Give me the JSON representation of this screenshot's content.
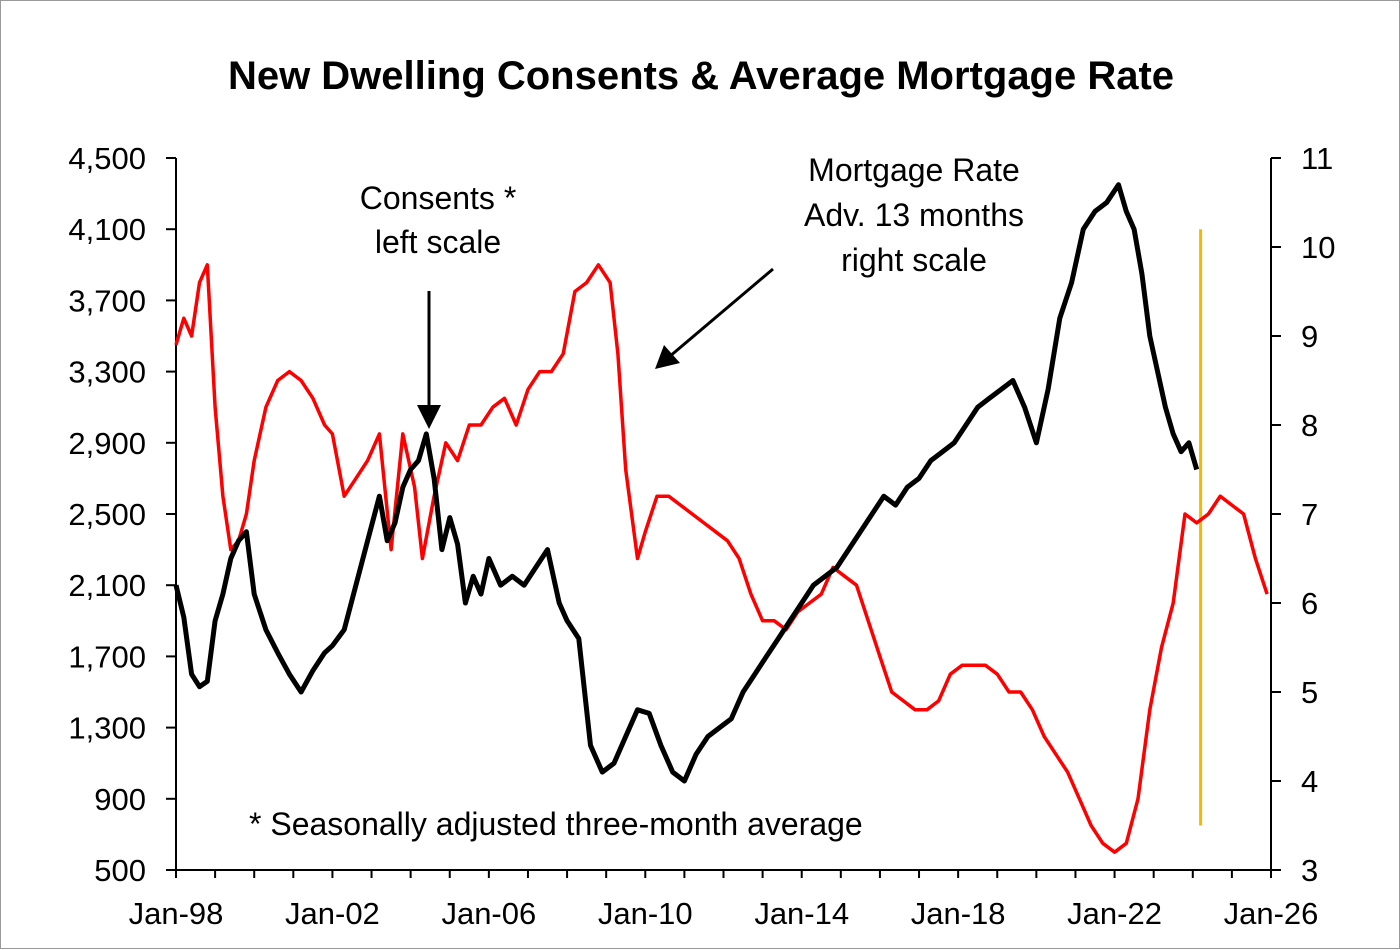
{
  "chart_data": {
    "type": "line",
    "title": "New Dwelling Consents & Average Mortgage Rate",
    "x_ticks": [
      "Jan-98",
      "Jan-02",
      "Jan-06",
      "Jan-10",
      "Jan-14",
      "Jan-18",
      "Jan-22",
      "Jan-26"
    ],
    "xlim": [
      1998.0,
      2026.0
    ],
    "y_left": {
      "ticks": [
        "500",
        "900",
        "1,300",
        "1,700",
        "2,100",
        "2,500",
        "2,900",
        "3,300",
        "3,700",
        "4,100",
        "4,500"
      ],
      "ylim": [
        500,
        4500
      ]
    },
    "y_right": {
      "ticks": [
        "3",
        "4",
        "5",
        "6",
        "7",
        "8",
        "9",
        "10",
        "11"
      ],
      "ylim": [
        3,
        11
      ]
    },
    "annotations": {
      "consents": [
        "Consents *",
        "left scale"
      ],
      "mortgage": [
        "Mortgage Rate",
        "Adv. 13 months",
        "right scale"
      ],
      "footnote": "* Seasonally adjusted three-month average"
    },
    "colors": {
      "consents": "#000000",
      "mortgage": "#ff0000",
      "marker": "#f5b800"
    },
    "marker_line_x": 2024.2,
    "series": [
      {
        "axis": "left",
        "x": [
          1998.0,
          1998.2,
          1998.4,
          1998.6,
          1998.8,
          1999.0,
          1999.2,
          1999.4,
          1999.6,
          1999.8,
          2000.0,
          2000.3,
          2000.6,
          2000.9,
          2001.2,
          2001.5,
          2001.8,
          2002.0,
          2002.3,
          2002.6,
          2002.9,
          2003.2,
          2003.4,
          2003.6,
          2003.8,
          2004.0,
          2004.2,
          2004.4,
          2004.6,
          2004.8,
          2005.0,
          2005.2,
          2005.4,
          2005.6,
          2005.8,
          2006.0,
          2006.3,
          2006.6,
          2006.9,
          2007.2,
          2007.5,
          2007.8,
          2008.0,
          2008.3,
          2008.6,
          2008.9,
          2009.2,
          2009.5,
          2009.8,
          2010.1,
          2010.4,
          2010.7,
          2011.0,
          2011.3,
          2011.6,
          2011.9,
          2012.2,
          2012.5,
          2012.8,
          2013.1,
          2013.4,
          2013.7,
          2014.0,
          2014.3,
          2014.6,
          2014.9,
          2015.2,
          2015.5,
          2015.8,
          2016.1,
          2016.4,
          2016.7,
          2017.0,
          2017.3,
          2017.6,
          2017.9,
          2018.2,
          2018.5,
          2018.8,
          2019.1,
          2019.4,
          2019.7,
          2020.0,
          2020.3,
          2020.6,
          2020.9,
          2021.2,
          2021.5,
          2021.8,
          2022.1,
          2022.3,
          2022.5,
          2022.7,
          2022.9,
          2023.1,
          2023.3,
          2023.5,
          2023.7,
          2023.9,
          2024.1
        ],
        "values": [
          2100,
          1920,
          1600,
          1530,
          1560,
          1900,
          2050,
          2250,
          2350,
          2400,
          2050,
          1850,
          1720,
          1600,
          1500,
          1620,
          1720,
          1760,
          1850,
          2100,
          2350,
          2600,
          2350,
          2450,
          2650,
          2750,
          2800,
          2950,
          2700,
          2300,
          2480,
          2330,
          2000,
          2150,
          2050,
          2250,
          2100,
          2150,
          2100,
          2200,
          2300,
          2000,
          1900,
          1800,
          1200,
          1050,
          1100,
          1250,
          1400,
          1380,
          1200,
          1050,
          1000,
          1150,
          1250,
          1300,
          1350,
          1500,
          1600,
          1700,
          1800,
          1900,
          2000,
          2100,
          2150,
          2200,
          2300,
          2400,
          2500,
          2600,
          2550,
          2650,
          2700,
          2800,
          2850,
          2900,
          3000,
          3100,
          3150,
          3200,
          3250,
          3100,
          2900,
          3200,
          3600,
          3800,
          4100,
          4200,
          4250,
          4350,
          4200,
          4100,
          3850,
          3500,
          3300,
          3100,
          2950,
          2850,
          2900,
          2750
        ]
      },
      {
        "axis": "right",
        "x": [
          1998.0,
          1998.2,
          1998.4,
          1998.6,
          1998.8,
          1999.0,
          1999.2,
          1999.4,
          1999.6,
          1999.8,
          2000.0,
          2000.3,
          2000.6,
          2000.9,
          2001.2,
          2001.5,
          2001.8,
          2002.0,
          2002.3,
          2002.6,
          2002.9,
          2003.2,
          2003.5,
          2003.8,
          2004.1,
          2004.3,
          2004.6,
          2004.9,
          2005.2,
          2005.5,
          2005.8,
          2006.1,
          2006.4,
          2006.7,
          2007.0,
          2007.3,
          2007.6,
          2007.9,
          2008.2,
          2008.5,
          2008.8,
          2009.1,
          2009.3,
          2009.5,
          2009.8,
          2010.0,
          2010.3,
          2010.6,
          2010.9,
          2011.2,
          2011.5,
          2011.8,
          2012.1,
          2012.4,
          2012.7,
          2013.0,
          2013.3,
          2013.6,
          2013.9,
          2014.2,
          2014.5,
          2014.8,
          2015.1,
          2015.4,
          2015.7,
          2016.0,
          2016.3,
          2016.6,
          2016.9,
          2017.2,
          2017.5,
          2017.8,
          2018.1,
          2018.4,
          2018.7,
          2019.0,
          2019.3,
          2019.6,
          2019.9,
          2020.2,
          2020.5,
          2020.8,
          2021.1,
          2021.4,
          2021.7,
          2022.0,
          2022.3,
          2022.6,
          2022.9,
          2023.2,
          2023.5,
          2023.8,
          2024.1,
          2024.4,
          2024.7,
          2025.0,
          2025.3,
          2025.6,
          2025.9
        ],
        "values": [
          8.9,
          9.2,
          9.0,
          9.6,
          9.8,
          8.2,
          7.2,
          6.6,
          6.7,
          7.0,
          7.6,
          8.2,
          8.5,
          8.6,
          8.5,
          8.3,
          8.0,
          7.9,
          7.2,
          7.4,
          7.6,
          7.9,
          6.6,
          7.9,
          7.3,
          6.5,
          7.2,
          7.8,
          7.6,
          8.0,
          8.0,
          8.2,
          8.3,
          8.0,
          8.4,
          8.6,
          8.6,
          8.8,
          9.5,
          9.6,
          9.8,
          9.6,
          8.8,
          7.5,
          6.5,
          6.8,
          7.2,
          7.2,
          7.1,
          7.0,
          6.9,
          6.8,
          6.7,
          6.5,
          6.1,
          5.8,
          5.8,
          5.7,
          5.9,
          6.0,
          6.1,
          6.4,
          6.3,
          6.2,
          5.8,
          5.4,
          5.0,
          4.9,
          4.8,
          4.8,
          4.9,
          5.2,
          5.3,
          5.3,
          5.3,
          5.2,
          5.0,
          5.0,
          4.8,
          4.5,
          4.3,
          4.1,
          3.8,
          3.5,
          3.3,
          3.2,
          3.3,
          3.8,
          4.8,
          5.5,
          6.0,
          7.0,
          6.9,
          7.0,
          7.2,
          7.1,
          7.0,
          6.5,
          6.1
        ]
      }
    ]
  }
}
